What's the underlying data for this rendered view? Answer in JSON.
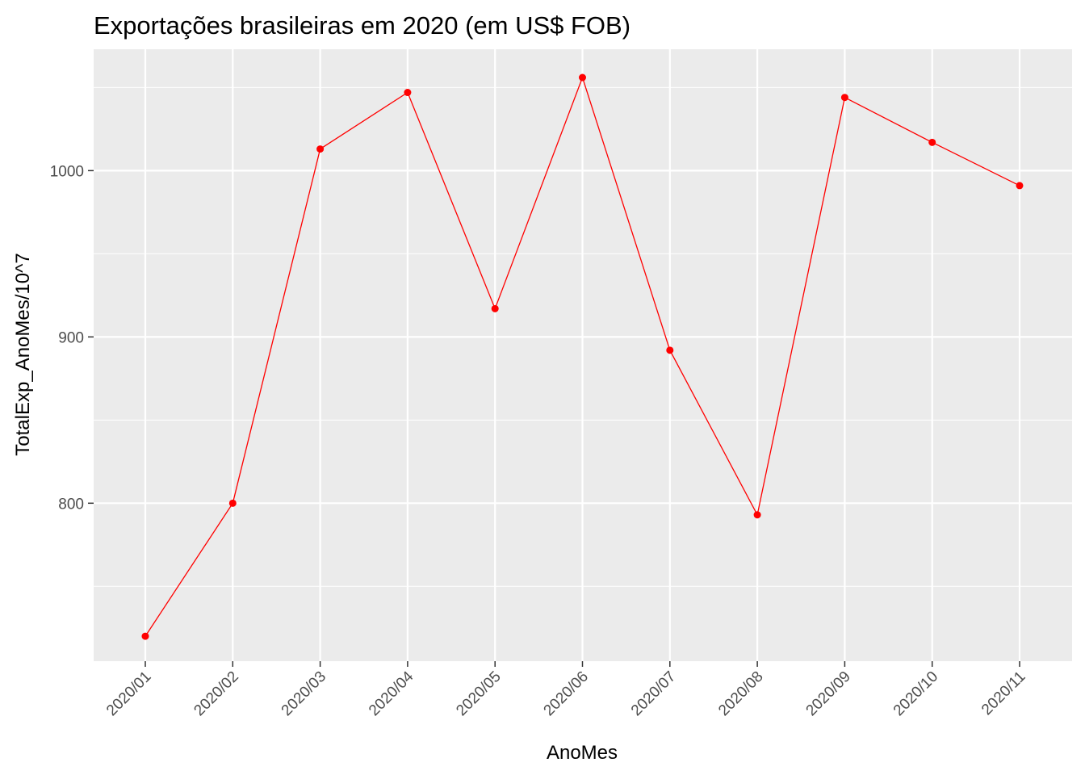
{
  "chart_data": {
    "type": "line",
    "title": "Exportações brasileiras em 2020 (em US$ FOB)",
    "xlabel": "AnoMes",
    "ylabel": "TotalExp_AnoMes/10^7",
    "categories": [
      "2020/01",
      "2020/02",
      "2020/03",
      "2020/04",
      "2020/05",
      "2020/06",
      "2020/07",
      "2020/08",
      "2020/09",
      "2020/10",
      "2020/11"
    ],
    "values": [
      720,
      800,
      1013,
      1047,
      917,
      1056,
      892,
      793,
      1044,
      1017,
      991
    ],
    "ylim": [
      705,
      1073
    ],
    "y_ticks": [
      800,
      900,
      1000
    ],
    "y_minor_ticks": [
      750,
      850,
      950,
      1050
    ],
    "grid": true,
    "colors": {
      "series": "#ff0000",
      "panel": "#ebebeb",
      "grid": "#ffffff",
      "tick_label": "#4d4d4d",
      "tick_mark": "#333333"
    }
  }
}
